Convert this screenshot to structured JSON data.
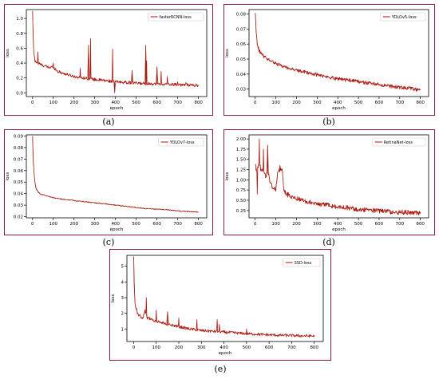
{
  "colors": {
    "line": "#b5120f",
    "marker": "#7a3b10",
    "frame": "#8b1a4a",
    "bg": "#ffffff"
  },
  "chart_data": [
    {
      "id": "a",
      "type": "line",
      "caption": "(a)",
      "xlabel": "epoch",
      "ylabel": "loss",
      "legend": "fasterRCNN-loss",
      "legend_position": "top-right",
      "xlim": [
        -30,
        840
      ],
      "ylim": [
        -0.05,
        1.12
      ],
      "xticks": [
        0,
        100,
        200,
        300,
        400,
        500,
        600,
        700,
        800
      ],
      "yticks": [
        0.0,
        0.2,
        0.4,
        0.6,
        0.8,
        1.0
      ],
      "ytick_labels": [
        "0.0",
        "0.2",
        "0.4",
        "0.6",
        "0.8",
        "1.0"
      ],
      "x": [
        0,
        5,
        10,
        20,
        40,
        60,
        80,
        100,
        120,
        150,
        200,
        250,
        300,
        350,
        400,
        450,
        500,
        550,
        600,
        650,
        700,
        750,
        800
      ],
      "y": [
        1.08,
        0.55,
        0.45,
        0.41,
        0.38,
        0.36,
        0.34,
        0.35,
        0.29,
        0.26,
        0.22,
        0.2,
        0.18,
        0.165,
        0.15,
        0.14,
        0.13,
        0.125,
        0.12,
        0.115,
        0.11,
        0.105,
        0.1
      ],
      "spikes": [
        [
          25,
          0.55
        ],
        [
          100,
          0.4
        ],
        [
          230,
          0.33
        ],
        [
          270,
          0.64
        ],
        [
          280,
          0.73
        ],
        [
          385,
          0.59
        ],
        [
          395,
          0.0
        ],
        [
          480,
          0.3
        ],
        [
          545,
          0.64
        ],
        [
          550,
          0.43
        ],
        [
          600,
          0.35
        ],
        [
          620,
          0.29
        ],
        [
          650,
          0.22
        ],
        [
          700,
          0.15
        ],
        [
          740,
          0.14
        ]
      ],
      "noise": 0.02
    },
    {
      "id": "b",
      "type": "line",
      "caption": "(b)",
      "xlabel": "epoch",
      "ylabel": "loss",
      "legend": "YOLOv5-loss",
      "legend_position": "top-right",
      "xlim": [
        -30,
        840
      ],
      "ylim": [
        0.025,
        0.083
      ],
      "xticks": [
        0,
        100,
        200,
        300,
        400,
        500,
        600,
        700,
        800
      ],
      "yticks": [
        0.03,
        0.04,
        0.05,
        0.06,
        0.07,
        0.08
      ],
      "ytick_labels": [
        "0.03",
        "0.04",
        "0.05",
        "0.06",
        "0.07",
        "0.08"
      ],
      "x": [
        0,
        5,
        10,
        20,
        40,
        60,
        80,
        100,
        150,
        200,
        250,
        300,
        350,
        400,
        450,
        500,
        550,
        600,
        650,
        700,
        750,
        800
      ],
      "y": [
        0.082,
        0.066,
        0.059,
        0.055,
        0.052,
        0.05,
        0.0485,
        0.047,
        0.0445,
        0.0425,
        0.041,
        0.0395,
        0.038,
        0.037,
        0.036,
        0.035,
        0.034,
        0.033,
        0.032,
        0.031,
        0.0305,
        0.029
      ],
      "spikes": [],
      "noise": 0.0012
    },
    {
      "id": "c",
      "type": "line",
      "caption": "(c)",
      "xlabel": "epoch",
      "ylabel": "loss",
      "legend": "YOLOv7-loss",
      "legend_position": "top-right",
      "xlim": [
        -30,
        840
      ],
      "ylim": [
        0.019,
        0.091
      ],
      "xticks": [
        0,
        100,
        200,
        300,
        400,
        500,
        600,
        700,
        800
      ],
      "yticks": [
        0.02,
        0.03,
        0.04,
        0.05,
        0.06,
        0.07,
        0.08,
        0.09
      ],
      "ytick_labels": [
        "0.02",
        "0.03",
        "0.04",
        "0.05",
        "0.06",
        "0.07",
        "0.08",
        "0.09"
      ],
      "x": [
        0,
        2,
        5,
        10,
        15,
        20,
        30,
        40,
        60,
        80,
        100,
        150,
        200,
        250,
        300,
        350,
        400,
        450,
        500,
        550,
        600,
        650,
        700,
        750,
        800
      ],
      "y": [
        0.09,
        0.075,
        0.062,
        0.052,
        0.046,
        0.043,
        0.041,
        0.0395,
        0.0385,
        0.0375,
        0.0365,
        0.035,
        0.034,
        0.033,
        0.032,
        0.031,
        0.03,
        0.029,
        0.028,
        0.027,
        0.0265,
        0.026,
        0.025,
        0.0245,
        0.024
      ],
      "spikes": [],
      "noise": 0.0004
    },
    {
      "id": "d",
      "type": "line",
      "caption": "(d)",
      "xlabel": "epoch",
      "ylabel": "loss",
      "legend": "RetinaNet-loss",
      "legend_position": "top-right",
      "xlim": [
        -30,
        840
      ],
      "ylim": [
        0.07,
        2.1
      ],
      "xticks": [
        0,
        100,
        200,
        300,
        400,
        500,
        600,
        700,
        800
      ],
      "yticks": [
        0.25,
        0.5,
        0.75,
        1.0,
        1.25,
        1.5,
        1.75,
        2.0
      ],
      "ytick_labels": [
        "0.25",
        "0.50",
        "0.75",
        "1.00",
        "1.25",
        "1.50",
        "1.75",
        "2.00"
      ],
      "x": [
        0,
        10,
        20,
        30,
        40,
        50,
        60,
        70,
        80,
        90,
        100,
        110,
        120,
        130,
        140,
        150,
        200,
        250,
        300,
        350,
        400,
        450,
        500,
        550,
        600,
        650,
        700,
        750,
        800
      ],
      "y": [
        1.35,
        1.25,
        1.4,
        1.2,
        1.3,
        1.05,
        1.25,
        1.0,
        0.85,
        0.8,
        0.78,
        1.25,
        1.2,
        1.25,
        0.75,
        0.65,
        0.55,
        0.47,
        0.42,
        0.38,
        0.34,
        0.31,
        0.28,
        0.26,
        0.24,
        0.22,
        0.21,
        0.2,
        0.19
      ],
      "spikes": [
        [
          20,
          2.0
        ],
        [
          40,
          1.75
        ],
        [
          60,
          1.85
        ],
        [
          10,
          0.65
        ],
        [
          120,
          1.35
        ]
      ],
      "noise": 0.06
    },
    {
      "id": "e",
      "type": "line",
      "caption": "(e)",
      "xlabel": "epoch",
      "ylabel": "loss",
      "legend": "SSD-loss",
      "legend_position": "top-right",
      "xlim": [
        -30,
        840
      ],
      "ylim": [
        0.2,
        5.7
      ],
      "xticks": [
        0,
        100,
        200,
        300,
        400,
        500,
        600,
        700,
        800
      ],
      "yticks": [
        1,
        2,
        3,
        4,
        5
      ],
      "ytick_labels": [
        "1",
        "2",
        "3",
        "4",
        "5"
      ],
      "x": [
        0,
        2,
        5,
        10,
        20,
        30,
        40,
        50,
        60,
        80,
        100,
        150,
        200,
        250,
        300,
        350,
        400,
        450,
        500,
        550,
        600,
        650,
        700,
        750,
        800
      ],
      "y": [
        5.5,
        4.0,
        2.8,
        2.3,
        1.95,
        1.75,
        1.65,
        2.2,
        1.7,
        1.6,
        1.5,
        1.3,
        1.15,
        1.0,
        0.9,
        0.85,
        0.8,
        0.75,
        0.7,
        0.66,
        0.62,
        0.6,
        0.58,
        0.56,
        0.55
      ],
      "spikes": [
        [
          55,
          3.0
        ],
        [
          100,
          2.2
        ],
        [
          150,
          2.1
        ],
        [
          200,
          1.7
        ],
        [
          280,
          1.6
        ],
        [
          370,
          1.6
        ],
        [
          380,
          1.3
        ],
        [
          500,
          1.0
        ]
      ],
      "noise": 0.09
    }
  ]
}
